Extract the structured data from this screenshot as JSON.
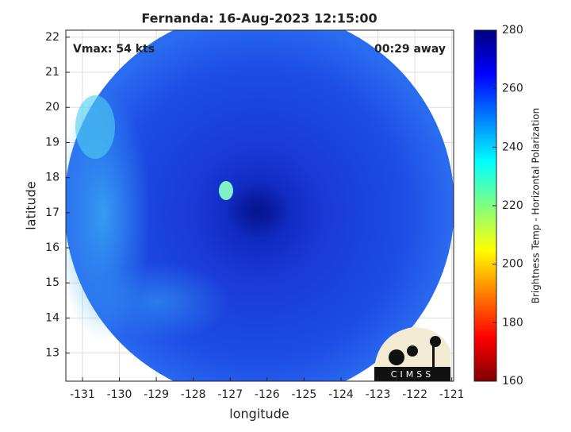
{
  "chart_data": {
    "type": "image",
    "title": "Fernanda: 16-Aug-2023 12:15:00",
    "annotations": [
      "Vmax: 54 kts",
      "00:29 away"
    ],
    "xlabel": "longitude",
    "ylabel": "latitude",
    "xlim": [
      -131.45,
      -120.95
    ],
    "ylim": [
      12.2,
      22.2
    ],
    "xticks": [
      -131,
      -130,
      -129,
      -128,
      -127,
      -126,
      -125,
      -124,
      -123,
      -122,
      -121
    ],
    "yticks": [
      13,
      14,
      15,
      16,
      17,
      18,
      19,
      20,
      21,
      22
    ],
    "grid": true,
    "colorbar": {
      "label": "Brightness Temp - Horizontal Polarization",
      "lim": [
        160,
        280
      ],
      "ticks": [
        160,
        180,
        200,
        220,
        240,
        260,
        280
      ],
      "colormap": "jet"
    },
    "logo": "CIMSS"
  }
}
